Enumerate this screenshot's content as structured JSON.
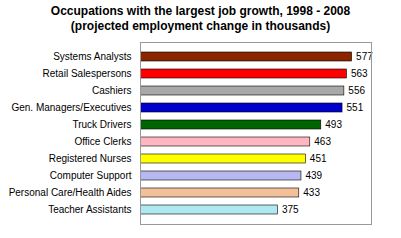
{
  "chart_data": {
    "type": "bar",
    "orientation": "horizontal",
    "title": "Occupations with the largest job growth, 1998 - 2008\n(projected employment change in thousands)",
    "categories": [
      "Teacher Assistants",
      "Personal Care/Health Aides",
      "Computer Support",
      "Registered Nurses",
      "Office Clerks",
      "Truck Drivers",
      "Gen. Managers/Executives",
      "Cashiers",
      "Retail Salespersons",
      "Systems Analysts"
    ],
    "values": [
      375,
      433,
      439,
      451,
      463,
      493,
      551,
      556,
      563,
      577
    ],
    "colors": [
      "#aee8f0",
      "#f4c09a",
      "#b8b8f0",
      "#ffff00",
      "#ffb6c1",
      "#006400",
      "#0000cc",
      "#a8a8a8",
      "#ff0000",
      "#8b2500"
    ],
    "xlim": [
      0,
      630
    ],
    "data_labels": true,
    "tick_labels": "y",
    "grid": false
  }
}
